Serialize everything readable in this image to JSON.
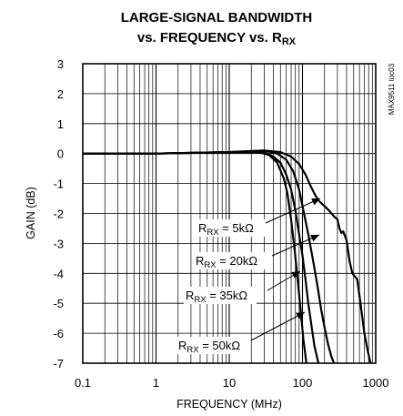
{
  "chart_data": {
    "type": "line",
    "title": {
      "line1": "LARGE-SIGNAL BANDWIDTH",
      "line2_text": "vs. FREQUENCY vs. R",
      "line2_sub": "RX"
    },
    "part_note": "MAX9511 toc03",
    "xlabel": "FREQUENCY (MHz)",
    "ylabel": "GAIN (dB)",
    "x_scale": "log",
    "xlim": [
      0.1,
      1000
    ],
    "ylim": [
      -7,
      3
    ],
    "x_ticks": [
      {
        "value": 0.1,
        "label": "0.1"
      },
      {
        "value": 1,
        "label": "1"
      },
      {
        "value": 10,
        "label": "10"
      },
      {
        "value": 100,
        "label": "100"
      },
      {
        "value": 1000,
        "label": "1000"
      }
    ],
    "y_ticks": [
      {
        "value": 3,
        "label": "3"
      },
      {
        "value": 2,
        "label": "2"
      },
      {
        "value": 1,
        "label": "1"
      },
      {
        "value": 0,
        "label": "0"
      },
      {
        "value": -1,
        "label": "-1"
      },
      {
        "value": -2,
        "label": "-2"
      },
      {
        "value": -3,
        "label": "-3"
      },
      {
        "value": -4,
        "label": "-4"
      },
      {
        "value": -5,
        "label": "-5"
      },
      {
        "value": -6,
        "label": "-6"
      },
      {
        "value": -7,
        "label": "-7"
      }
    ],
    "grid": true,
    "series": [
      {
        "id": "rx5k",
        "annotation": {
          "prefix": "R",
          "sub": "RX",
          "value": " = 5kΩ"
        },
        "points": [
          [
            0.1,
            0.0
          ],
          [
            1,
            0.0
          ],
          [
            10,
            0.05
          ],
          [
            30,
            0.1
          ],
          [
            50,
            0.05
          ],
          [
            70,
            -0.1
          ],
          [
            90,
            -0.35
          ],
          [
            110,
            -0.7
          ],
          [
            130,
            -1.1
          ],
          [
            150,
            -1.4
          ],
          [
            170,
            -1.6
          ],
          [
            200,
            -1.75
          ],
          [
            230,
            -1.9
          ],
          [
            250,
            -2.0
          ],
          [
            270,
            -2.1
          ],
          [
            300,
            -2.2
          ],
          [
            320,
            -2.5
          ],
          [
            340,
            -2.65
          ],
          [
            360,
            -2.6
          ],
          [
            400,
            -2.9
          ],
          [
            440,
            -3.6
          ],
          [
            480,
            -4.0
          ],
          [
            560,
            -4.2
          ],
          [
            620,
            -5.0
          ],
          [
            700,
            -6.0
          ],
          [
            780,
            -6.6
          ],
          [
            850,
            -7.0
          ]
        ]
      },
      {
        "id": "rx20k",
        "annotation": {
          "prefix": "R",
          "sub": "RX",
          "value": " = 20kΩ"
        },
        "points": [
          [
            0.1,
            0.0
          ],
          [
            1,
            0.0
          ],
          [
            10,
            0.05
          ],
          [
            30,
            0.1
          ],
          [
            45,
            0.0
          ],
          [
            60,
            -0.2
          ],
          [
            75,
            -0.6
          ],
          [
            90,
            -1.2
          ],
          [
            105,
            -2.0
          ],
          [
            120,
            -2.7
          ],
          [
            140,
            -3.6
          ],
          [
            160,
            -4.4
          ],
          [
            180,
            -5.2
          ],
          [
            200,
            -5.8
          ],
          [
            225,
            -6.4
          ],
          [
            250,
            -6.8
          ],
          [
            270,
            -7.0
          ]
        ]
      },
      {
        "id": "rx35k",
        "annotation": {
          "prefix": "R",
          "sub": "RX",
          "value": " = 35kΩ"
        },
        "points": [
          [
            0.1,
            0.0
          ],
          [
            1,
            0.0
          ],
          [
            10,
            0.05
          ],
          [
            30,
            0.05
          ],
          [
            40,
            -0.1
          ],
          [
            50,
            -0.3
          ],
          [
            60,
            -0.7
          ],
          [
            70,
            -1.2
          ],
          [
            80,
            -1.9
          ],
          [
            90,
            -2.7
          ],
          [
            100,
            -3.4
          ],
          [
            110,
            -4.2
          ],
          [
            120,
            -5.0
          ],
          [
            130,
            -5.6
          ],
          [
            145,
            -6.4
          ],
          [
            165,
            -7.0
          ]
        ]
      },
      {
        "id": "rx50k",
        "annotation": {
          "prefix": "R",
          "sub": "RX",
          "value": " = 50kΩ"
        },
        "points": [
          [
            0.1,
            0.0
          ],
          [
            1,
            0.0
          ],
          [
            10,
            0.05
          ],
          [
            25,
            0.05
          ],
          [
            35,
            -0.05
          ],
          [
            45,
            -0.3
          ],
          [
            55,
            -0.8
          ],
          [
            62,
            -1.3
          ],
          [
            70,
            -2.2
          ],
          [
            78,
            -3.2
          ],
          [
            86,
            -4.2
          ],
          [
            95,
            -5.3
          ],
          [
            103,
            -6.2
          ],
          [
            113,
            -7.0
          ]
        ]
      }
    ]
  }
}
